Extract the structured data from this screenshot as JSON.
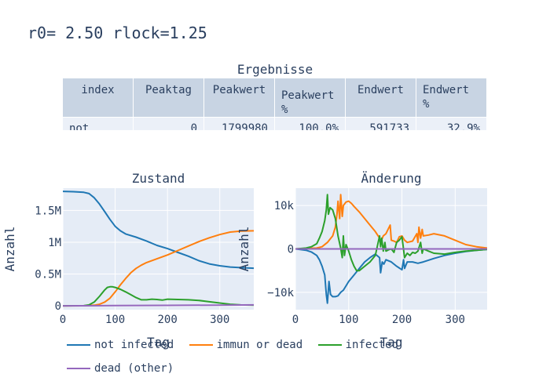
{
  "title": "r0= 2.50 rlock=1.25",
  "table": {
    "title": "Ergebnisse",
    "headers": [
      "index",
      "Peaktag",
      "Peakwert",
      "Peakwert\n%",
      "Endwert",
      "Endwert\n%"
    ],
    "rows": [
      [
        "not",
        "0",
        "1799980",
        "100.0%",
        "591733",
        "32.9%"
      ]
    ]
  },
  "chart_data": [
    {
      "type": "line",
      "title": "Zustand",
      "xlabel": "Tag",
      "ylabel": "Anzahl",
      "xlim": [
        0,
        365
      ],
      "ylim": [
        -60000,
        1850000
      ],
      "x_ticks": [
        0,
        100,
        200,
        300
      ],
      "x_tick_labels": [
        "0",
        "100",
        "200",
        "300"
      ],
      "y_ticks": [
        0,
        500000,
        1000000,
        1500000
      ],
      "y_tick_labels": [
        "0",
        "0.5M",
        "1M",
        "1.5M"
      ],
      "grid": true,
      "series": [
        {
          "name": "not infected",
          "color": "#1f77b4",
          "x": [
            0,
            20,
            40,
            50,
            60,
            70,
            80,
            90,
            100,
            110,
            120,
            140,
            160,
            180,
            200,
            220,
            240,
            260,
            280,
            300,
            320,
            340,
            365
          ],
          "y": [
            1800000,
            1795000,
            1785000,
            1765000,
            1700000,
            1600000,
            1480000,
            1360000,
            1250000,
            1180000,
            1130000,
            1080000,
            1020000,
            950000,
            900000,
            840000,
            780000,
            710000,
            660000,
            630000,
            610000,
            600000,
            592000
          ]
        },
        {
          "name": "immun or dead",
          "color": "#ff7f0e",
          "x": [
            0,
            40,
            60,
            70,
            80,
            90,
            100,
            110,
            120,
            130,
            140,
            150,
            160,
            180,
            200,
            220,
            240,
            260,
            280,
            300,
            320,
            340,
            365
          ],
          "y": [
            0,
            2000,
            10000,
            25000,
            60000,
            120000,
            220000,
            330000,
            430000,
            520000,
            590000,
            640000,
            680000,
            740000,
            800000,
            870000,
            940000,
            1010000,
            1070000,
            1120000,
            1160000,
            1175000,
            1180000
          ]
        },
        {
          "name": "infected",
          "color": "#2ca02c",
          "x": [
            0,
            40,
            50,
            60,
            70,
            80,
            85,
            90,
            95,
            100,
            110,
            120,
            130,
            140,
            150,
            160,
            170,
            180,
            190,
            200,
            220,
            240,
            260,
            280,
            300,
            320,
            340,
            365
          ],
          "y": [
            0,
            3000,
            15000,
            60000,
            150000,
            250000,
            290000,
            300000,
            300000,
            290000,
            260000,
            220000,
            175000,
            130000,
            95000,
            95000,
            105000,
            100000,
            90000,
            105000,
            100000,
            95000,
            85000,
            65000,
            45000,
            25000,
            15000,
            10000
          ]
        },
        {
          "name": "dead (other)",
          "color": "#9467bd",
          "x": [
            0,
            100,
            200,
            300,
            365
          ],
          "y": [
            0,
            4000,
            8000,
            12000,
            15000
          ]
        }
      ]
    },
    {
      "type": "line",
      "title": "Änderung",
      "xlabel": "Tag",
      "ylabel": "Anzahl",
      "xlim": [
        0,
        360
      ],
      "ylim": [
        -14000,
        14000
      ],
      "x_ticks": [
        0,
        100,
        200,
        300
      ],
      "x_tick_labels": [
        "0",
        "100",
        "200",
        "300"
      ],
      "y_ticks": [
        -10000,
        0,
        10000
      ],
      "y_tick_labels": [
        "−10k",
        "0",
        "10k"
      ],
      "grid": true,
      "series": [
        {
          "name": "not infected",
          "color": "#1f77b4",
          "x": [
            0,
            20,
            30,
            40,
            45,
            50,
            55,
            58,
            60,
            63,
            66,
            70,
            75,
            80,
            85,
            90,
            95,
            100,
            110,
            120,
            130,
            140,
            150,
            158,
            160,
            163,
            166,
            170,
            180,
            190,
            200,
            203,
            205,
            210,
            220,
            230,
            240,
            260,
            280,
            300,
            320,
            340,
            360
          ],
          "y": [
            0,
            -300,
            -700,
            -1500,
            -2500,
            -4000,
            -6000,
            -10500,
            -12500,
            -7500,
            -10500,
            -11000,
            -11000,
            -10800,
            -10000,
            -9500,
            -8500,
            -7500,
            -6000,
            -4500,
            -3000,
            -2000,
            -1200,
            -2000,
            -5500,
            -3000,
            -3500,
            -2500,
            -3000,
            -4000,
            -4800,
            -2500,
            -4500,
            -3000,
            -3000,
            -3300,
            -3000,
            -2200,
            -1500,
            -1000,
            -600,
            -300,
            -100
          ]
        },
        {
          "name": "immun or dead",
          "color": "#ff7f0e",
          "x": [
            0,
            40,
            50,
            60,
            70,
            75,
            78,
            80,
            83,
            85,
            88,
            90,
            95,
            100,
            105,
            110,
            120,
            130,
            140,
            150,
            158,
            160,
            165,
            170,
            178,
            180,
            185,
            190,
            195,
            200,
            205,
            210,
            220,
            228,
            230,
            232,
            235,
            238,
            240,
            250,
            260,
            280,
            300,
            320,
            340,
            360
          ],
          "y": [
            0,
            200,
            500,
            1500,
            3000,
            5000,
            8000,
            11000,
            7000,
            12500,
            7500,
            10000,
            10800,
            11000,
            10500,
            9800,
            8500,
            7000,
            5500,
            4000,
            2500,
            1500,
            3000,
            3500,
            5500,
            2000,
            1800,
            1500,
            2800,
            3000,
            2000,
            1500,
            1800,
            3500,
            1500,
            5000,
            2500,
            4500,
            3000,
            3200,
            3500,
            3000,
            2000,
            1000,
            500,
            200
          ]
        },
        {
          "name": "infected",
          "color": "#2ca02c",
          "x": [
            0,
            20,
            30,
            40,
            45,
            50,
            55,
            58,
            60,
            62,
            65,
            70,
            75,
            80,
            85,
            88,
            90,
            92,
            95,
            100,
            105,
            110,
            115,
            120,
            130,
            140,
            150,
            158,
            160,
            162,
            165,
            168,
            170,
            175,
            180,
            185,
            190,
            195,
            200,
            205,
            210,
            215,
            220,
            225,
            230,
            235,
            238,
            240,
            250,
            260,
            280,
            300,
            320,
            340,
            360
          ],
          "y": [
            0,
            200,
            500,
            1200,
            2500,
            4000,
            6500,
            9000,
            12500,
            8000,
            9500,
            9000,
            7000,
            3000,
            200,
            -2000,
            3000,
            -1500,
            1000,
            -500,
            -2500,
            -4000,
            -5000,
            -5000,
            -4000,
            -3000,
            -1500,
            3000,
            500,
            2500,
            -500,
            1500,
            -500,
            -200,
            0,
            -800,
            1500,
            2000,
            2800,
            -2000,
            -1000,
            -1500,
            -800,
            -1000,
            -500,
            1500,
            -1000,
            0,
            -500,
            -1000,
            -1200,
            -800,
            -500,
            -300,
            -100
          ]
        },
        {
          "name": "dead (other)",
          "color": "#9467bd",
          "x": [
            0,
            360
          ],
          "y": [
            0,
            0
          ]
        }
      ]
    }
  ],
  "legend": [
    {
      "name": "not infected",
      "color": "#1f77b4"
    },
    {
      "name": "immun or dead",
      "color": "#ff7f0e"
    },
    {
      "name": "infected",
      "color": "#2ca02c"
    },
    {
      "name": "dead (other)",
      "color": "#9467bd"
    }
  ]
}
